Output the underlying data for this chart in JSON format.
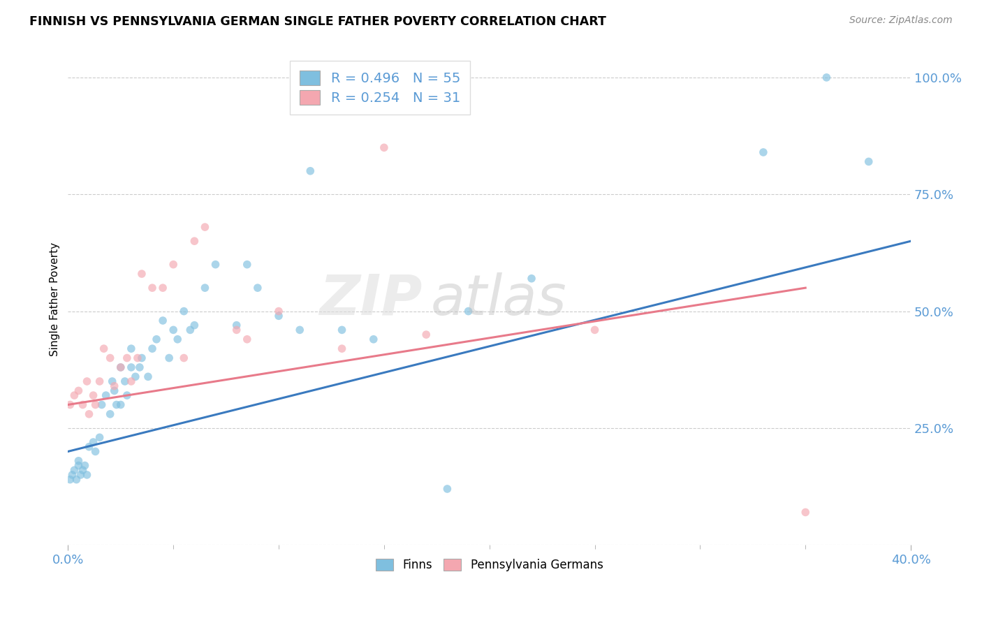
{
  "title": "FINNISH VS PENNSYLVANIA GERMAN SINGLE FATHER POVERTY CORRELATION CHART",
  "source": "Source: ZipAtlas.com",
  "ylabel": "Single Father Poverty",
  "y_ticks": [
    0.0,
    0.25,
    0.5,
    0.75,
    1.0
  ],
  "y_tick_labels": [
    "",
    "25.0%",
    "50.0%",
    "75.0%",
    "100.0%"
  ],
  "xlim": [
    0.0,
    0.4
  ],
  "ylim": [
    0.0,
    1.05
  ],
  "watermark_zip": "ZIP",
  "watermark_atlas": "atlas",
  "finns_color": "#7fbfdf",
  "pa_german_color": "#f4a7b0",
  "finns_line_color": "#3a7abf",
  "pa_german_line_color": "#e87a8a",
  "finns_label": "R = 0.496   N = 55",
  "pa_label": "R = 0.254   N = 31",
  "legend_label_finns": "Finns",
  "legend_label_pa": "Pennsylvania Germans",
  "finns_x": [
    0.001,
    0.002,
    0.003,
    0.004,
    0.005,
    0.005,
    0.006,
    0.007,
    0.008,
    0.009,
    0.01,
    0.012,
    0.013,
    0.015,
    0.016,
    0.018,
    0.02,
    0.021,
    0.022,
    0.023,
    0.025,
    0.025,
    0.027,
    0.028,
    0.03,
    0.03,
    0.032,
    0.034,
    0.035,
    0.038,
    0.04,
    0.042,
    0.045,
    0.048,
    0.05,
    0.052,
    0.055,
    0.058,
    0.06,
    0.065,
    0.07,
    0.08,
    0.085,
    0.09,
    0.1,
    0.11,
    0.115,
    0.13,
    0.145,
    0.18,
    0.19,
    0.22,
    0.33,
    0.36,
    0.38
  ],
  "finns_y": [
    0.14,
    0.15,
    0.16,
    0.14,
    0.17,
    0.18,
    0.15,
    0.16,
    0.17,
    0.15,
    0.21,
    0.22,
    0.2,
    0.23,
    0.3,
    0.32,
    0.28,
    0.35,
    0.33,
    0.3,
    0.38,
    0.3,
    0.35,
    0.32,
    0.38,
    0.42,
    0.36,
    0.38,
    0.4,
    0.36,
    0.42,
    0.44,
    0.48,
    0.4,
    0.46,
    0.44,
    0.5,
    0.46,
    0.47,
    0.55,
    0.6,
    0.47,
    0.6,
    0.55,
    0.49,
    0.46,
    0.8,
    0.46,
    0.44,
    0.12,
    0.5,
    0.57,
    0.84,
    1.0,
    0.82
  ],
  "pa_x": [
    0.001,
    0.003,
    0.005,
    0.007,
    0.009,
    0.01,
    0.012,
    0.013,
    0.015,
    0.017,
    0.02,
    0.022,
    0.025,
    0.028,
    0.03,
    0.033,
    0.035,
    0.04,
    0.045,
    0.05,
    0.055,
    0.06,
    0.065,
    0.08,
    0.085,
    0.1,
    0.13,
    0.15,
    0.17,
    0.25,
    0.35
  ],
  "pa_y": [
    0.3,
    0.32,
    0.33,
    0.3,
    0.35,
    0.28,
    0.32,
    0.3,
    0.35,
    0.42,
    0.4,
    0.34,
    0.38,
    0.4,
    0.35,
    0.4,
    0.58,
    0.55,
    0.55,
    0.6,
    0.4,
    0.65,
    0.68,
    0.46,
    0.44,
    0.5,
    0.42,
    0.85,
    0.45,
    0.46,
    0.07
  ],
  "finns_line_x": [
    0.0,
    0.4
  ],
  "finns_line_y": [
    0.2,
    0.65
  ],
  "pa_line_x": [
    0.0,
    0.35
  ],
  "pa_line_y": [
    0.3,
    0.55
  ]
}
